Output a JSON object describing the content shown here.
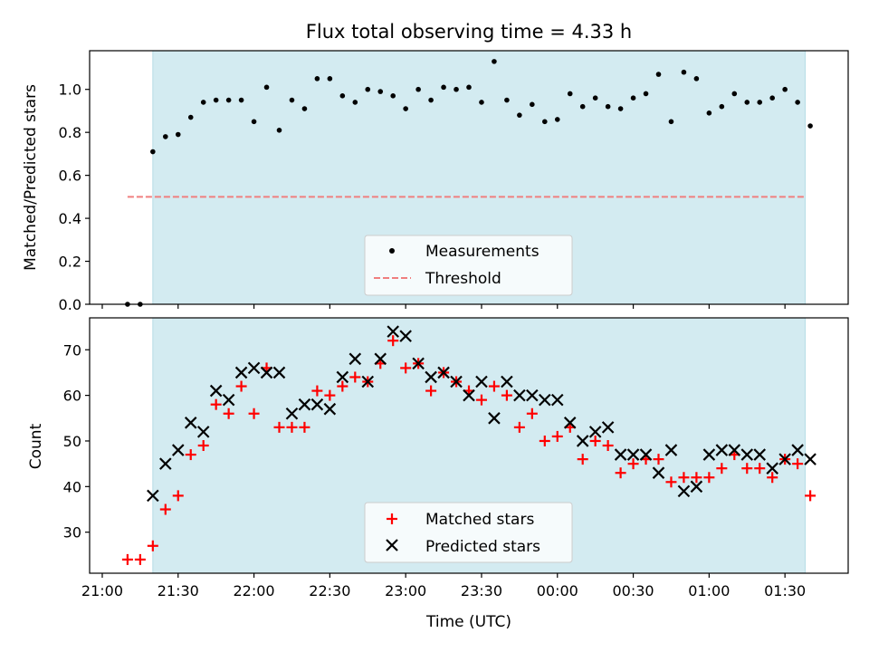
{
  "chart_data": [
    {
      "type": "scatter",
      "title": "Flux total observing time = 4.33 h",
      "ylabel": "Matched/Predicted stars",
      "ylim": [
        0,
        1.18
      ],
      "yticks": [
        "0.0",
        "0.2",
        "0.4",
        "0.6",
        "0.8",
        "1.0"
      ],
      "shaded_region": {
        "start": "21:20",
        "end": "01:38",
        "color": "#d3ebf1"
      },
      "legend_position": "lower-center",
      "series": [
        {
          "name": "Measurements",
          "marker": "dot",
          "color": "#000000",
          "x": [
            "21:10",
            "21:15",
            "21:20",
            "21:25",
            "21:30",
            "21:35",
            "21:40",
            "21:45",
            "21:50",
            "21:55",
            "22:00",
            "22:05",
            "22:10",
            "22:15",
            "22:20",
            "22:25",
            "22:30",
            "22:35",
            "22:40",
            "22:45",
            "22:50",
            "22:55",
            "23:00",
            "23:05",
            "23:10",
            "23:15",
            "23:20",
            "23:25",
            "23:30",
            "23:35",
            "23:40",
            "23:45",
            "23:50",
            "23:55",
            "00:00",
            "00:05",
            "00:10",
            "00:15",
            "00:20",
            "00:25",
            "00:30",
            "00:35",
            "00:40",
            "00:45",
            "00:50",
            "00:55",
            "01:00",
            "01:05",
            "01:10",
            "01:15",
            "01:20",
            "01:25",
            "01:30",
            "01:35",
            "01:40"
          ],
          "y": [
            0.0,
            0.0,
            0.71,
            0.78,
            0.79,
            0.87,
            0.94,
            0.95,
            0.95,
            0.95,
            0.85,
            1.01,
            0.81,
            0.95,
            0.91,
            1.05,
            1.05,
            0.97,
            0.94,
            1.0,
            0.99,
            0.97,
            0.91,
            1.0,
            0.95,
            1.01,
            1.0,
            1.01,
            0.94,
            1.13,
            0.95,
            0.88,
            0.93,
            0.85,
            0.86,
            0.98,
            0.92,
            0.96,
            0.92,
            0.91,
            0.96,
            0.98,
            1.07,
            0.85,
            1.08,
            1.05,
            0.89,
            0.92,
            0.98,
            0.94,
            0.94,
            0.96,
            1.0,
            0.94,
            0.83
          ]
        },
        {
          "name": "Threshold",
          "marker": "dashed-line",
          "color": "#f07f7f",
          "x": [
            "21:10",
            "01:38"
          ],
          "y": [
            0.5,
            0.5
          ]
        }
      ]
    },
    {
      "type": "scatter",
      "xlabel": "Time (UTC)",
      "ylabel": "Count",
      "ylim": [
        21,
        77
      ],
      "yticks": [
        "30",
        "40",
        "50",
        "60",
        "70"
      ],
      "xticks": [
        "21:00",
        "21:30",
        "22:00",
        "22:30",
        "23:00",
        "23:30",
        "00:00",
        "00:30",
        "01:00",
        "01:30"
      ],
      "shaded_region": {
        "start": "21:20",
        "end": "01:38",
        "color": "#d3ebf1"
      },
      "legend_position": "lower-center",
      "series": [
        {
          "name": "Matched stars",
          "marker": "plus",
          "color": "#ff0000",
          "x": [
            "21:10",
            "21:15",
            "21:20",
            "21:25",
            "21:30",
            "21:35",
            "21:40",
            "21:45",
            "21:50",
            "21:55",
            "22:00",
            "22:05",
            "22:10",
            "22:15",
            "22:20",
            "22:25",
            "22:30",
            "22:35",
            "22:40",
            "22:45",
            "22:50",
            "22:55",
            "23:00",
            "23:05",
            "23:10",
            "23:15",
            "23:20",
            "23:25",
            "23:30",
            "23:35",
            "23:40",
            "23:45",
            "23:50",
            "23:55",
            "00:00",
            "00:05",
            "00:10",
            "00:15",
            "00:20",
            "00:25",
            "00:30",
            "00:35",
            "00:40",
            "00:45",
            "00:50",
            "00:55",
            "01:00",
            "01:05",
            "01:10",
            "01:15",
            "01:20",
            "01:25",
            "01:30",
            "01:35",
            "01:40"
          ],
          "y": [
            24,
            24,
            27,
            35,
            38,
            47,
            49,
            58,
            56,
            62,
            56,
            66,
            53,
            53,
            53,
            61,
            60,
            62,
            64,
            63,
            67,
            72,
            66,
            67,
            61,
            65,
            63,
            61,
            59,
            62,
            60,
            53,
            56,
            50,
            51,
            53,
            46,
            50,
            49,
            43,
            45,
            46,
            46,
            41,
            42,
            42,
            42,
            44,
            47,
            44,
            44,
            42,
            46,
            45,
            38
          ]
        },
        {
          "name": "Predicted stars",
          "marker": "x",
          "color": "#000000",
          "x": [
            "21:20",
            "21:25",
            "21:30",
            "21:35",
            "21:40",
            "21:45",
            "21:50",
            "21:55",
            "22:00",
            "22:05",
            "22:10",
            "22:15",
            "22:20",
            "22:25",
            "22:30",
            "22:35",
            "22:40",
            "22:45",
            "22:50",
            "22:55",
            "23:00",
            "23:05",
            "23:10",
            "23:15",
            "23:20",
            "23:25",
            "23:30",
            "23:35",
            "23:40",
            "23:45",
            "23:50",
            "23:55",
            "00:00",
            "00:05",
            "00:10",
            "00:15",
            "00:20",
            "00:25",
            "00:30",
            "00:35",
            "00:40",
            "00:45",
            "00:50",
            "00:55",
            "01:00",
            "01:05",
            "01:10",
            "01:15",
            "01:20",
            "01:25",
            "01:30",
            "01:35",
            "01:40"
          ],
          "y": [
            38,
            45,
            48,
            54,
            52,
            61,
            59,
            65,
            66,
            65,
            65,
            56,
            58,
            58,
            57,
            64,
            68,
            63,
            68,
            74,
            73,
            67,
            64,
            65,
            63,
            60,
            63,
            55,
            63,
            60,
            60,
            59,
            59,
            54,
            50,
            52,
            53,
            47,
            47,
            47,
            43,
            48,
            39,
            40,
            47,
            48,
            48,
            47,
            47,
            44,
            46,
            48,
            46
          ]
        }
      ]
    }
  ]
}
